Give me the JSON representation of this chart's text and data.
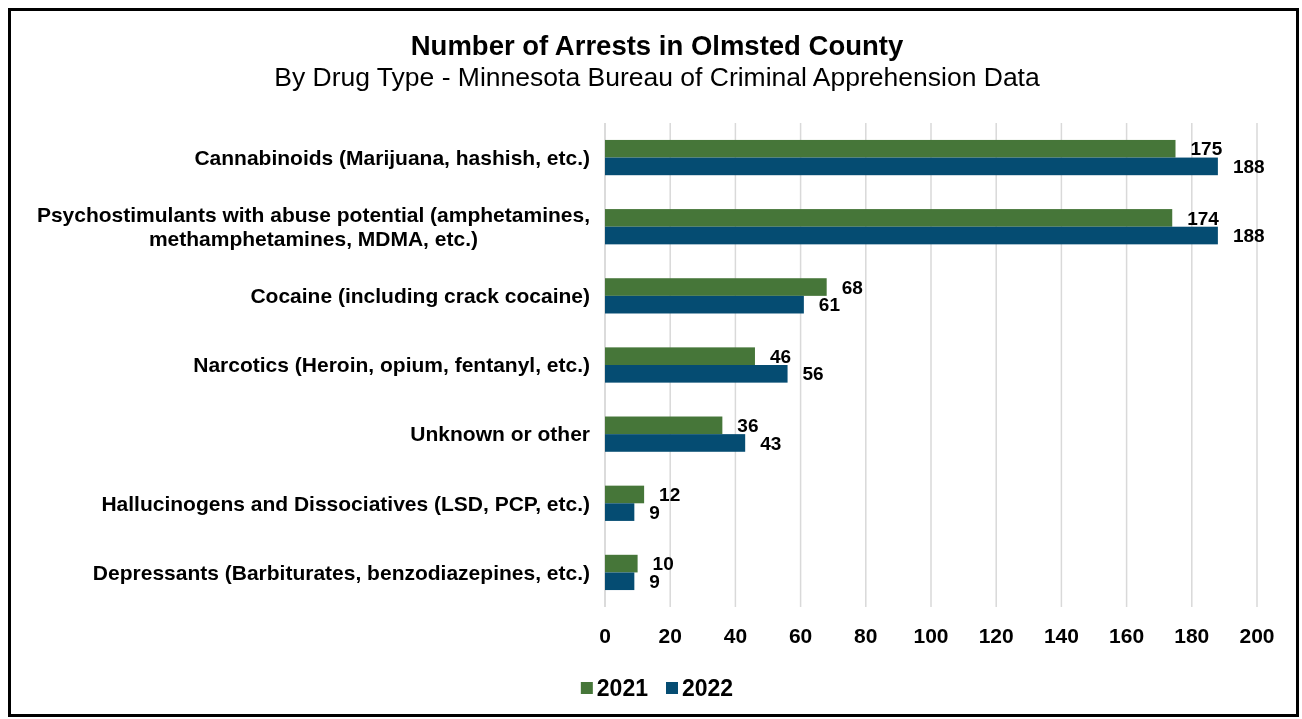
{
  "chart_data": {
    "type": "bar",
    "orientation": "horizontal",
    "title": "Number of Arrests in Olmsted County",
    "subtitle": "By Drug Type - Minnesota Bureau of Criminal Apprehension Data",
    "categories": [
      "Cannabinoids (Marijuana, hashish, etc.)",
      "Psychostimulants with abuse potential (amphetamines, methamphetamines, MDMA, etc.)",
      "Cocaine (including crack cocaine)",
      "Narcotics (Heroin, opium, fentanyl, etc.)",
      "Unknown or other",
      "Hallucinogens and Dissociatives (LSD, PCP, etc.)",
      "Depressants (Barbiturates, benzodiazepines, etc.)"
    ],
    "series": [
      {
        "name": "2021",
        "color": "#467639",
        "values": [
          175,
          174,
          68,
          46,
          36,
          12,
          10
        ]
      },
      {
        "name": "2022",
        "color": "#054c72",
        "values": [
          188,
          188,
          61,
          56,
          43,
          9,
          9
        ]
      }
    ],
    "xlim": [
      0,
      200
    ],
    "xticks": [
      0,
      20,
      40,
      60,
      80,
      100,
      120,
      140,
      160,
      180,
      200
    ],
    "grid": "x",
    "legend": "bottom",
    "data_labels": true
  }
}
